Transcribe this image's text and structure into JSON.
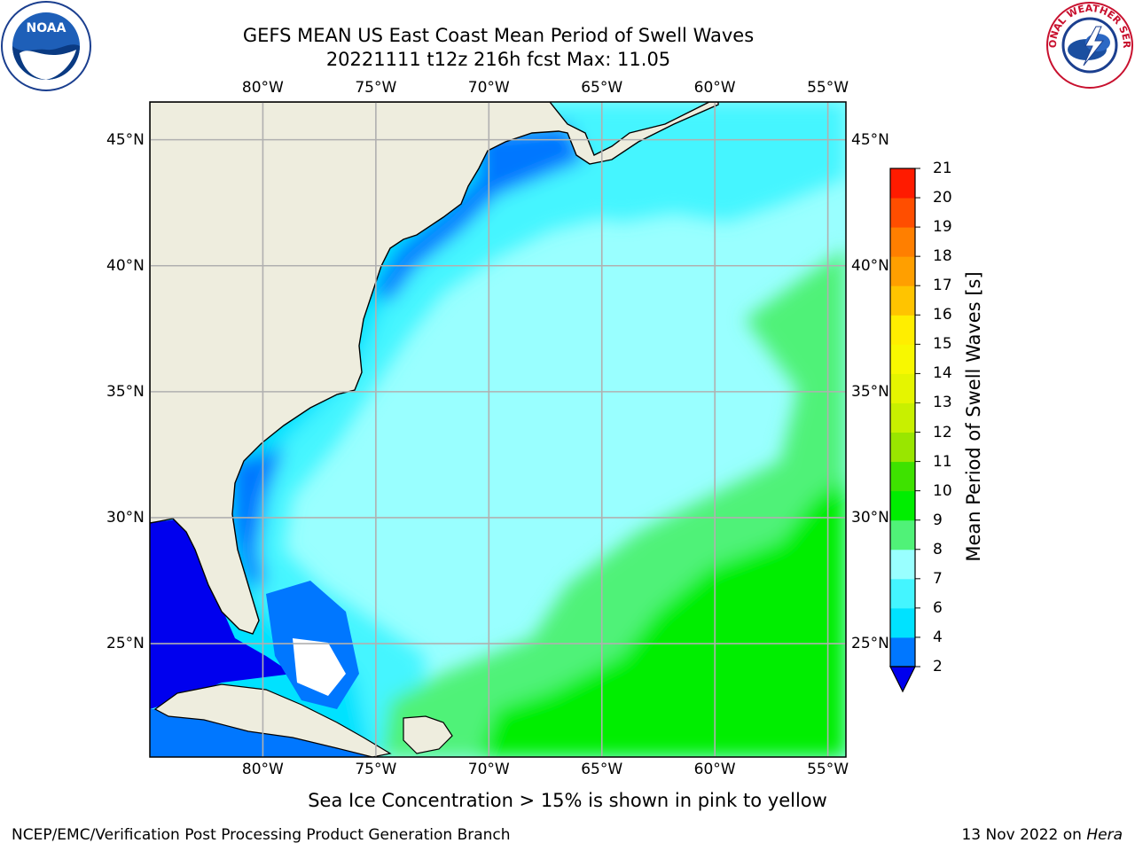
{
  "header": {
    "title_line1": "GEFS MEAN US East Coast Mean Period of Swell Waves",
    "title_line2": "20221111 t12z 216h fcst   Max: 11.05"
  },
  "logos": {
    "left": "NOAA",
    "right": "NATIONAL WEATHER SERVICE"
  },
  "map": {
    "lon_labels": [
      "80°W",
      "75°W",
      "70°W",
      "65°W",
      "60°W",
      "55°W"
    ],
    "lat_labels": [
      "45°N",
      "40°N",
      "35°N",
      "30°N",
      "25°N"
    ],
    "extent": {
      "lon_min": -85,
      "lon_max": -54.2,
      "lat_min": 20.5,
      "lat_max": 46.5
    },
    "land_color": "#eeedde",
    "grid_color": "#b0b0b0"
  },
  "colorbar": {
    "label": "Mean Period of Swell Waves [s]",
    "ticks": [
      "2",
      "4",
      "6",
      "7",
      "8",
      "9",
      "10",
      "11",
      "12",
      "13",
      "14",
      "15",
      "16",
      "17",
      "18",
      "19",
      "20",
      "21"
    ],
    "colors": [
      "#0077ff",
      "#00e2ff",
      "#44f5ff",
      "#99ffff",
      "#50f278",
      "#00ee00",
      "#3ee200",
      "#99e600",
      "#c8f000",
      "#e5f500",
      "#f8f800",
      "#ffee00",
      "#ffc400",
      "#ff9f00",
      "#ff7f00",
      "#ff4e00",
      "#ff1b00"
    ],
    "under_color": "#0000ee"
  },
  "footer": {
    "sea_ice_note": "Sea Ice Concentration > 15% is shown in pink to yellow",
    "left_text": "NCEP/EMC/Verification Post Processing Product Generation Branch",
    "right_text_prefix": "13 Nov 2022 on ",
    "right_text_italic": "Hera"
  }
}
